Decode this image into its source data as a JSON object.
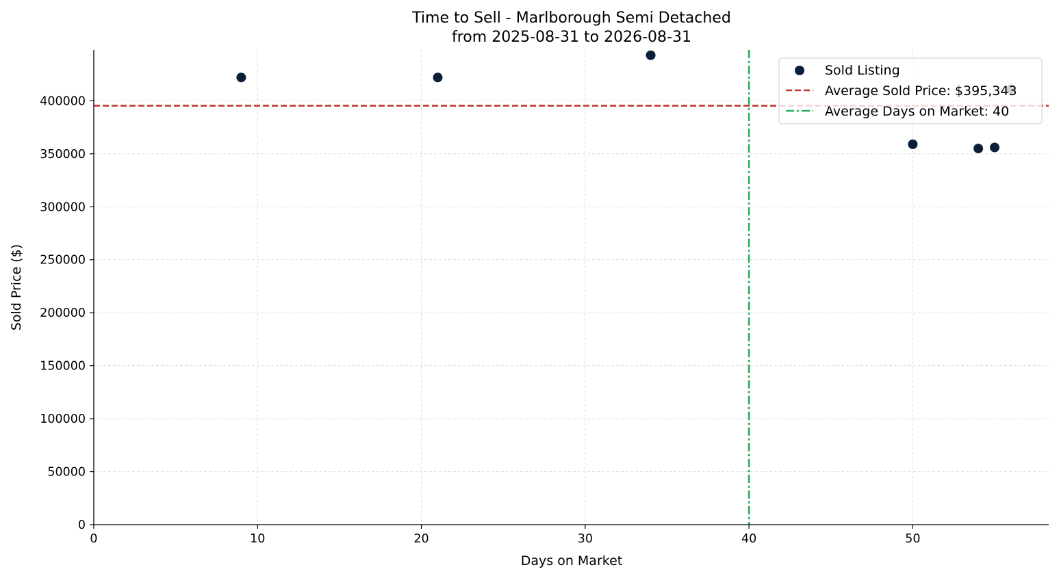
{
  "chart_data": {
    "type": "scatter",
    "title": "Time to Sell - Marlborough Semi Detached",
    "subtitle": "from 2025-08-31 to 2026-08-31",
    "xlabel": "Days on Market",
    "ylabel": "Sold Price ($)",
    "xlim": [
      0,
      58.3
    ],
    "ylim": [
      0,
      448000
    ],
    "xticks": [
      0,
      10,
      20,
      30,
      40,
      50
    ],
    "yticks": [
      0,
      50000,
      100000,
      150000,
      200000,
      250000,
      300000,
      350000,
      400000
    ],
    "grid": true,
    "legend_position": "top-right",
    "series": [
      {
        "name": "Sold Listing",
        "color": "#0b1f3a",
        "points": [
          {
            "x": 9,
            "y": 422000
          },
          {
            "x": 21,
            "y": 422000
          },
          {
            "x": 34,
            "y": 443000
          },
          {
            "x": 50,
            "y": 359000
          },
          {
            "x": 54,
            "y": 355000
          },
          {
            "x": 55,
            "y": 356000
          },
          {
            "x": 56,
            "y": 411000
          }
        ]
      }
    ],
    "reference_lines": [
      {
        "name": "Average Sold Price: $395,343",
        "orientation": "horizontal",
        "value": 395343,
        "color": "#c0392b",
        "style": "dashed"
      },
      {
        "name": "Average Days on Market: 40",
        "orientation": "vertical",
        "value": 40,
        "color": "#27ae60",
        "style": "dashdot"
      }
    ]
  }
}
